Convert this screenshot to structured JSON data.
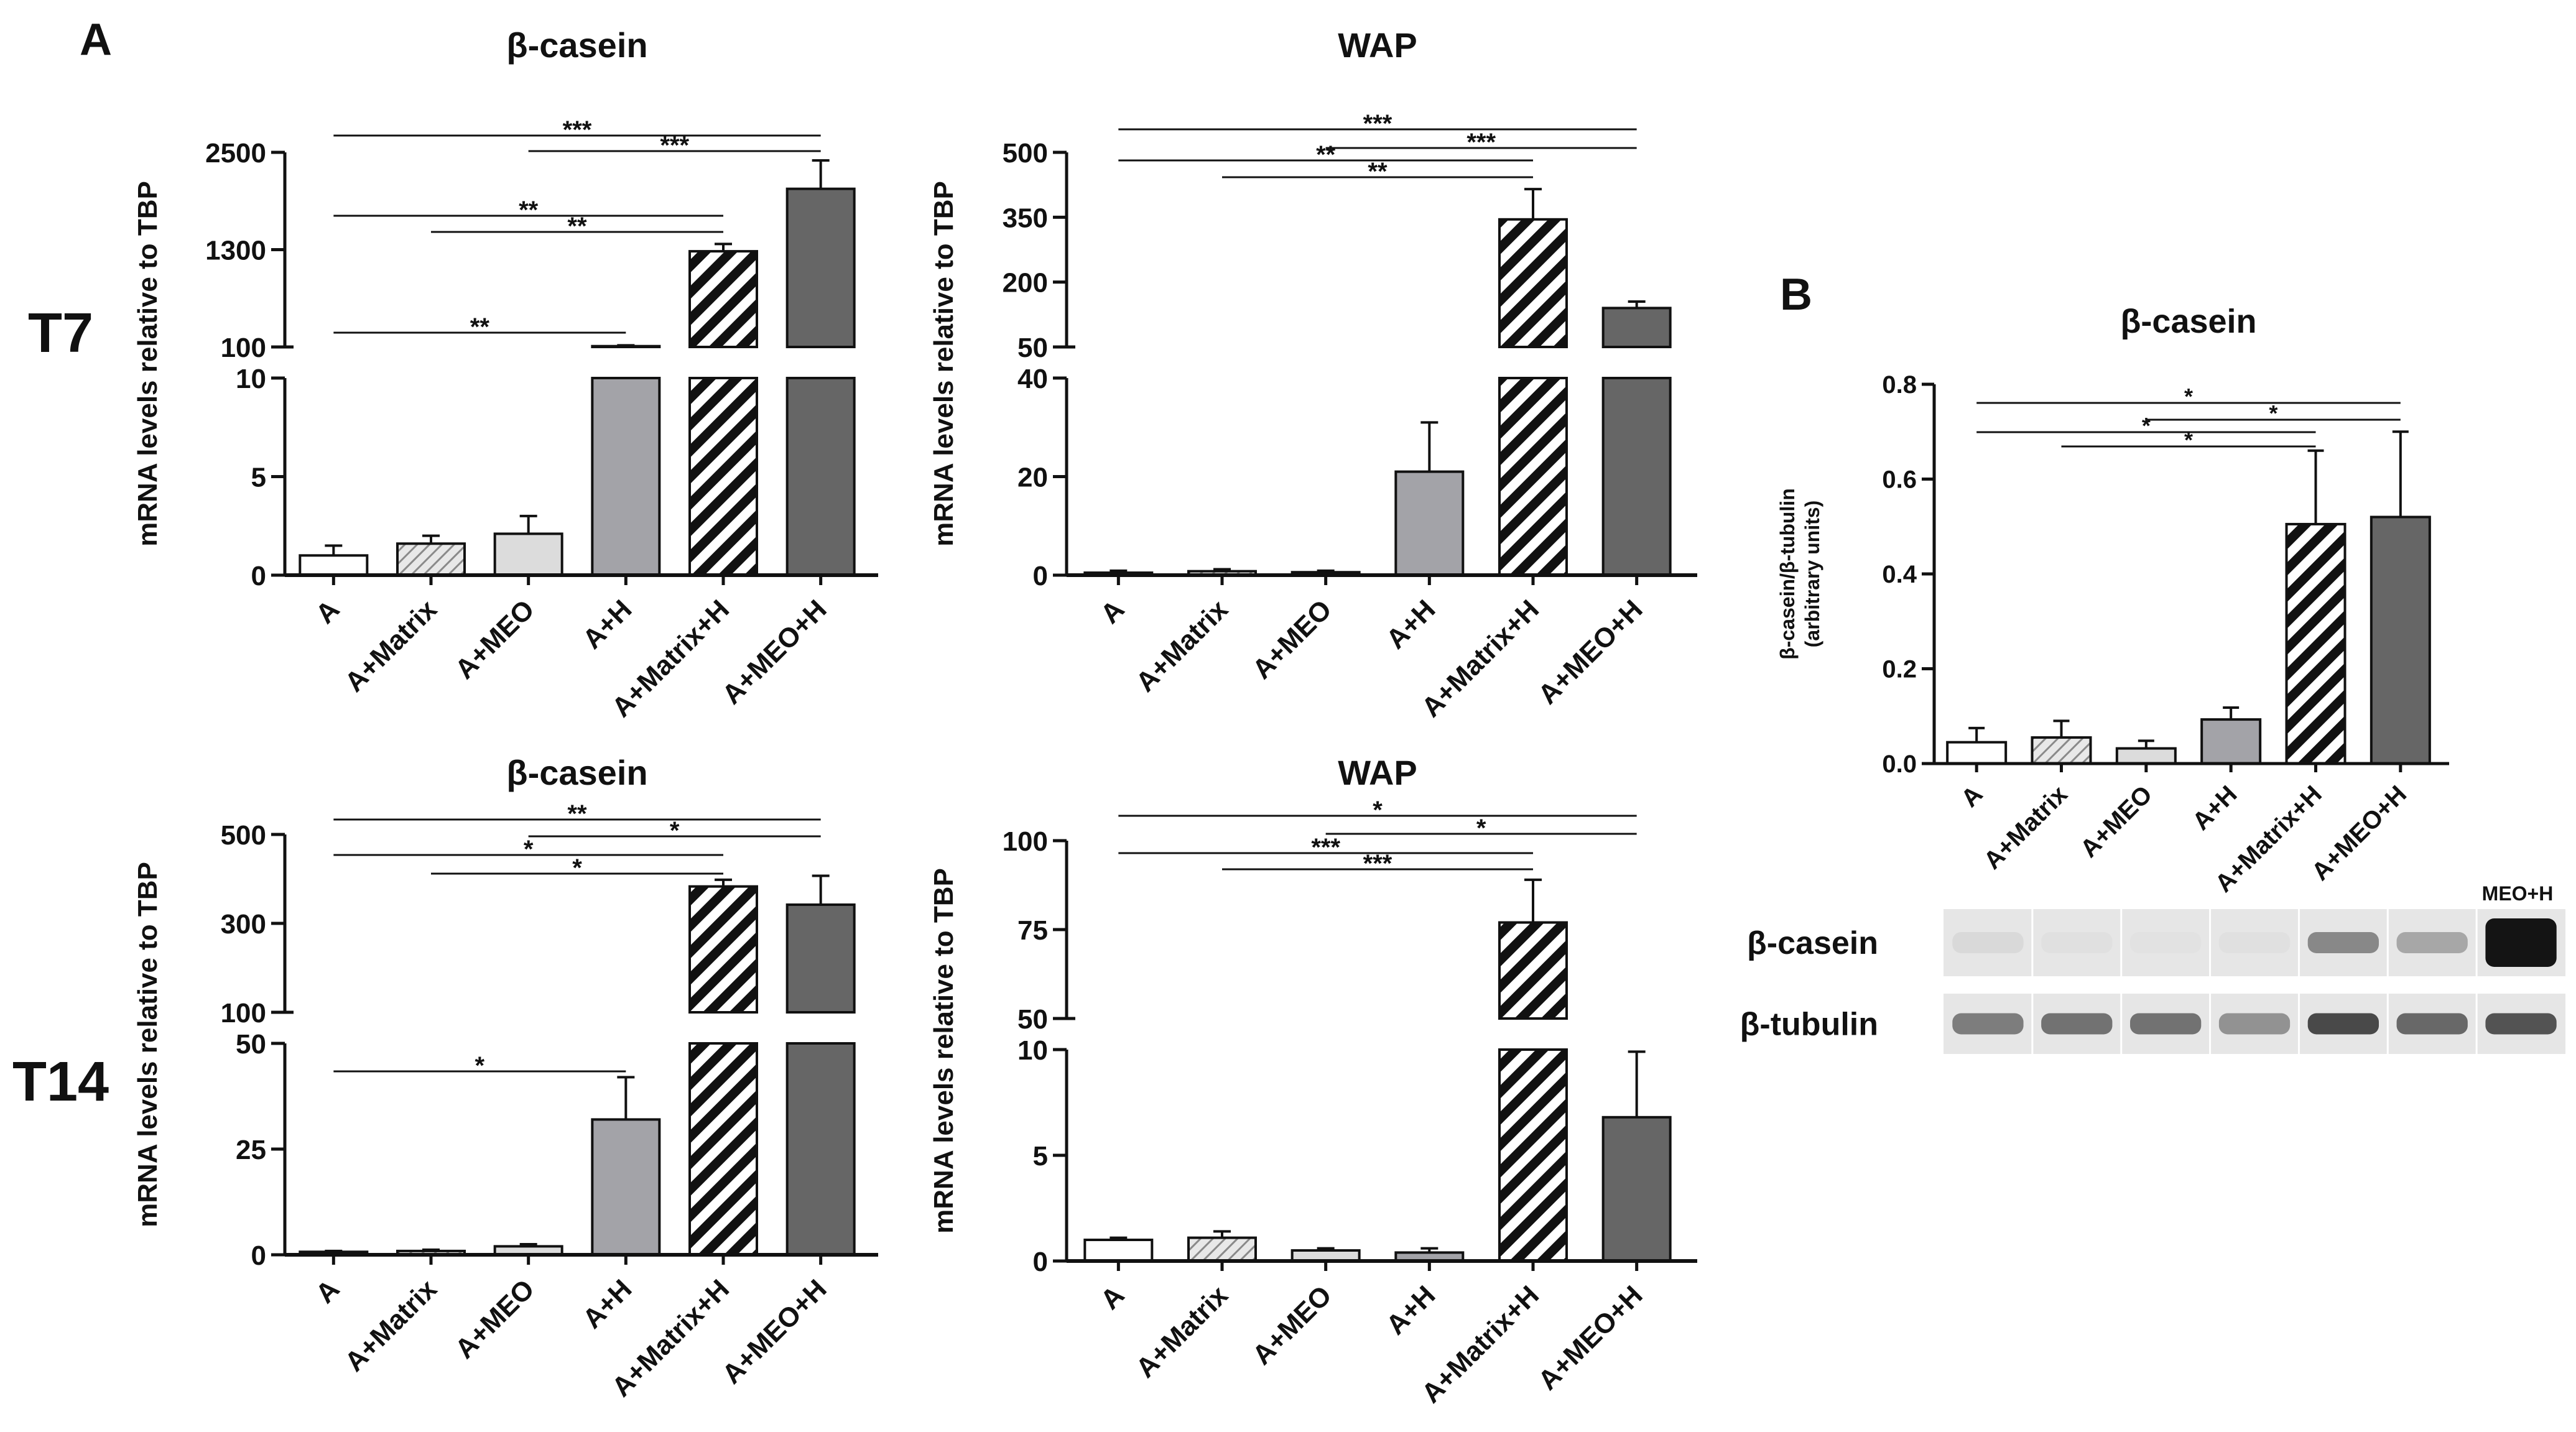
{
  "colors": {
    "axis": "#111111",
    "A": "#ffffff",
    "A+Matrix": "#e8e8e8",
    "A+MEO": "#dcdcdc",
    "A+H": "#a3a3a8",
    "A+Matrix+H": "#ffffff",
    "A+MEO+H": "#666666",
    "stripe": "#111111"
  },
  "panels": {
    "A": "A",
    "B": "B"
  },
  "timepoints": {
    "t7": "T7",
    "t14": "T14"
  },
  "ylabel_mrna": "mRNA levels relative to TBP",
  "chart_data": [
    {
      "id": "t7_bcasein",
      "type": "bar",
      "title": "β-casein",
      "categories": [
        "A",
        "A+Matrix",
        "A+MEO",
        "A+H",
        "A+Matrix+H",
        "A+MEO+H"
      ],
      "values": [
        1.0,
        1.6,
        2.1,
        110,
        1280,
        2050
      ],
      "errors": [
        0.5,
        0.4,
        0.9,
        10,
        90,
        350
      ],
      "segments": [
        {
          "range": [
            0,
            10
          ],
          "ticks": [
            0,
            5,
            10
          ]
        },
        {
          "range": [
            100,
            2500
          ],
          "ticks": [
            "100",
            "1300",
            "2500"
          ]
        }
      ],
      "significance": [
        {
          "from": 0,
          "to": 5,
          "label": "***"
        },
        {
          "from": 2,
          "to": 5,
          "label": "***"
        },
        {
          "from": 0,
          "to": 4,
          "label": "**"
        },
        {
          "from": 1,
          "to": 4,
          "label": "**"
        },
        {
          "from": 0,
          "to": 3,
          "label": "**"
        }
      ]
    },
    {
      "id": "t7_wap",
      "type": "bar",
      "title": "WAP",
      "categories": [
        "A",
        "A+Matrix",
        "A+MEO",
        "A+H",
        "A+Matrix+H",
        "A+MEO+H"
      ],
      "values": [
        0.5,
        0.8,
        0.6,
        21,
        345,
        140
      ],
      "errors": [
        0.4,
        0.4,
        0.3,
        10,
        70,
        15
      ],
      "segments": [
        {
          "range": [
            0,
            40
          ],
          "ticks": [
            0,
            20,
            40
          ]
        },
        {
          "range": [
            50,
            500
          ],
          "ticks": [
            "50",
            "200",
            "350",
            "500"
          ]
        }
      ],
      "significance": [
        {
          "from": 0,
          "to": 5,
          "label": "***"
        },
        {
          "from": 2,
          "to": 5,
          "label": "***"
        },
        {
          "from": 0,
          "to": 4,
          "label": "**"
        },
        {
          "from": 1,
          "to": 4,
          "label": "**"
        }
      ]
    },
    {
      "id": "t14_bcasein",
      "type": "bar",
      "title": "β-casein",
      "categories": [
        "A",
        "A+Matrix",
        "A+MEO",
        "A+H",
        "A+Matrix+H",
        "A+MEO+H"
      ],
      "values": [
        0.7,
        0.9,
        2.0,
        32,
        383,
        342
      ],
      "errors": [
        0.2,
        0.3,
        0.5,
        10,
        15,
        65
      ],
      "segments": [
        {
          "range": [
            0,
            50
          ],
          "ticks": [
            0,
            25,
            50
          ]
        },
        {
          "range": [
            100,
            500
          ],
          "ticks": [
            "100",
            "300",
            "500"
          ]
        }
      ],
      "significance": [
        {
          "from": 0,
          "to": 5,
          "label": "**"
        },
        {
          "from": 2,
          "to": 5,
          "label": "*"
        },
        {
          "from": 0,
          "to": 4,
          "label": "*"
        },
        {
          "from": 1,
          "to": 4,
          "label": "*"
        },
        {
          "from": 0,
          "to": 3,
          "label": "*"
        }
      ]
    },
    {
      "id": "t14_wap",
      "type": "bar",
      "title": "WAP",
      "categories": [
        "A",
        "A+Matrix",
        "A+MEO",
        "A+H",
        "A+Matrix+H",
        "A+MEO+H"
      ],
      "values": [
        1.0,
        1.1,
        0.5,
        0.4,
        77,
        6.8
      ],
      "errors": [
        0.1,
        0.3,
        0.1,
        0.2,
        12,
        3.1
      ],
      "segments": [
        {
          "range": [
            0,
            10
          ],
          "ticks": [
            0,
            5,
            10
          ]
        },
        {
          "range": [
            50,
            100
          ],
          "ticks": [
            "50",
            "75",
            "100"
          ]
        }
      ],
      "significance": [
        {
          "from": 0,
          "to": 5,
          "label": "*"
        },
        {
          "from": 2,
          "to": 5,
          "label": "*"
        },
        {
          "from": 0,
          "to": 4,
          "label": "***"
        },
        {
          "from": 1,
          "to": 4,
          "label": "***"
        }
      ]
    },
    {
      "id": "b_bcasein",
      "type": "bar",
      "title": "β-casein",
      "ylabel_line1": "β-casein/β-tubulin",
      "ylabel_line2": "(arbitrary units)",
      "categories": [
        "A",
        "A+Matrix",
        "A+MEO",
        "A+H",
        "A+Matrix+H",
        "A+MEO+H"
      ],
      "values": [
        0.045,
        0.055,
        0.032,
        0.093,
        0.505,
        0.52
      ],
      "errors": [
        0.03,
        0.035,
        0.016,
        0.025,
        0.155,
        0.18
      ],
      "ylim": [
        0,
        0.8
      ],
      "ticks": [
        "0.0",
        "0.2",
        "0.4",
        "0.6",
        "0.8"
      ],
      "significance": [
        {
          "from": 0,
          "to": 5,
          "label": "*"
        },
        {
          "from": 2,
          "to": 5,
          "label": "*"
        },
        {
          "from": 0,
          "to": 4,
          "label": "*"
        },
        {
          "from": 1,
          "to": 4,
          "label": "*"
        }
      ]
    }
  ],
  "western_blot": {
    "rows": [
      "β-casein",
      "β-tubulin"
    ],
    "extra_lane_label": "MEO+H",
    "band_intensity": {
      "β-casein": [
        0.06,
        0.03,
        0.02,
        0.03,
        0.45,
        0.3,
        1.0
      ],
      "β-tubulin": [
        0.5,
        0.55,
        0.55,
        0.4,
        0.75,
        0.6,
        0.7
      ]
    }
  }
}
